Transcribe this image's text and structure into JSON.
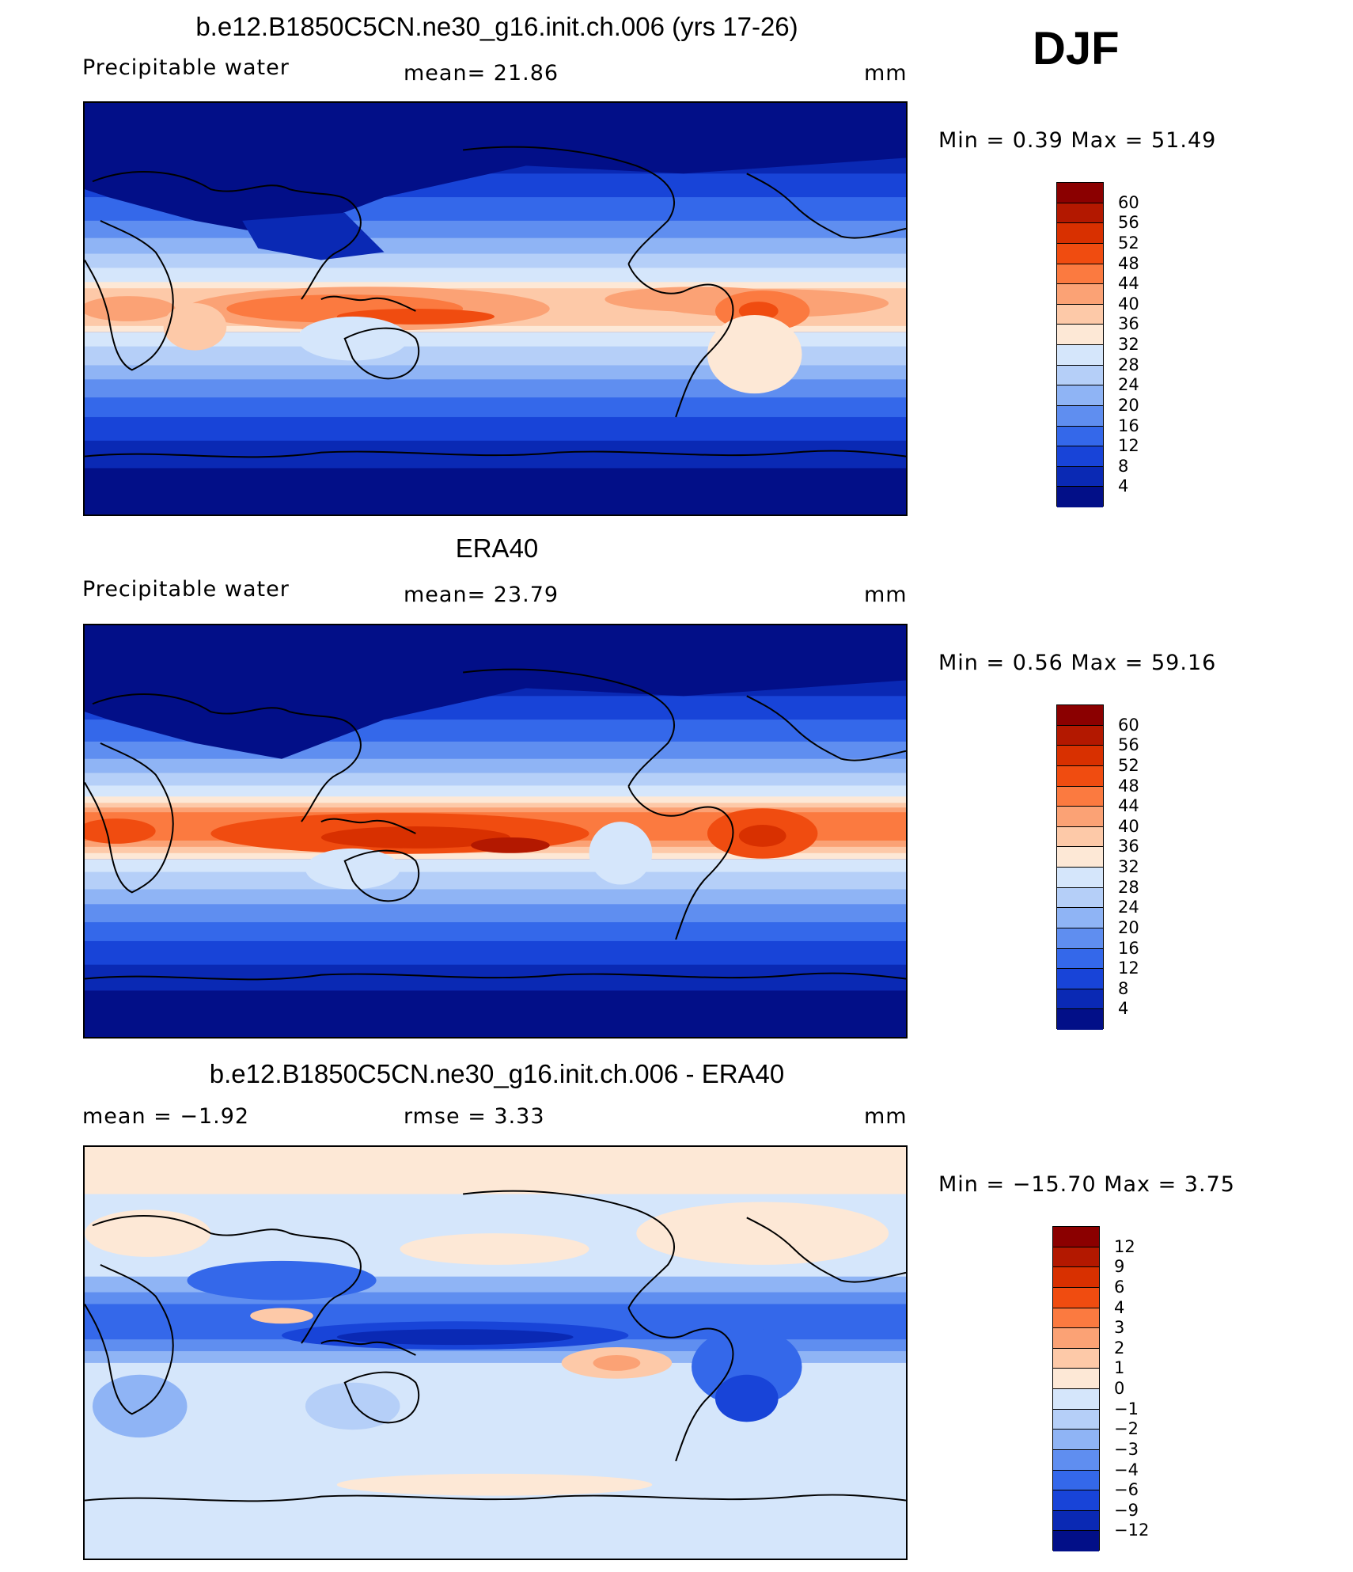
{
  "season": "DJF",
  "panels": [
    {
      "title": "b.e12.B1850C5CN.ne30_g16.init.ch.006 (yrs 17-26)",
      "left_label": "Precipitable  water",
      "mid_label": "mean=   21.86",
      "unit": "mm",
      "minmax": "Min  =     0.39  Max  =    51.49",
      "colorbar": {
        "labels": [
          "60",
          "56",
          "52",
          "48",
          "44",
          "40",
          "36",
          "32",
          "28",
          "24",
          "20",
          "16",
          "12",
          "8",
          "4"
        ],
        "colors": [
          "#8b0000",
          "#b31800",
          "#d83000",
          "#f04c10",
          "#fb7a40",
          "#fba275",
          "#fdc9a8",
          "#fde8d6",
          "#d5e6fb",
          "#b5cff8",
          "#8fb4f5",
          "#5f8ef0",
          "#3468ea",
          "#1844d8",
          "#0a29b4",
          "#020f88"
        ]
      }
    },
    {
      "title": "ERA40",
      "left_label": "Precipitable  water",
      "mid_label": "mean=   23.79",
      "unit": "mm",
      "minmax": "Min  =     0.56  Max  =    59.16",
      "colorbar": {
        "labels": [
          "60",
          "56",
          "52",
          "48",
          "44",
          "40",
          "36",
          "32",
          "28",
          "24",
          "20",
          "16",
          "12",
          "8",
          "4"
        ],
        "colors": [
          "#8b0000",
          "#b31800",
          "#d83000",
          "#f04c10",
          "#fb7a40",
          "#fba275",
          "#fdc9a8",
          "#fde8d6",
          "#d5e6fb",
          "#b5cff8",
          "#8fb4f5",
          "#5f8ef0",
          "#3468ea",
          "#1844d8",
          "#0a29b4",
          "#020f88"
        ]
      }
    },
    {
      "title": "b.e12.B1850C5CN.ne30_g16.init.ch.006 - ERA40",
      "left_label": "mean  =    −1.92",
      "mid_label": "rmse  =     3.33",
      "unit": "mm",
      "minmax": "Min  =  −15.70  Max  =     3.75",
      "colorbar": {
        "labels": [
          "12",
          "9",
          "6",
          "4",
          "3",
          "2",
          "1",
          "0",
          "−1",
          "−2",
          "−3",
          "−4",
          "−6",
          "−9",
          "−12"
        ],
        "colors": [
          "#8b0000",
          "#b31800",
          "#d83000",
          "#f04c10",
          "#fb7a40",
          "#fba275",
          "#fdc9a8",
          "#fde8d6",
          "#d5e6fb",
          "#b5cff8",
          "#8fb4f5",
          "#5f8ef0",
          "#3468ea",
          "#1844d8",
          "#0a29b4",
          "#020f88"
        ]
      }
    }
  ]
}
